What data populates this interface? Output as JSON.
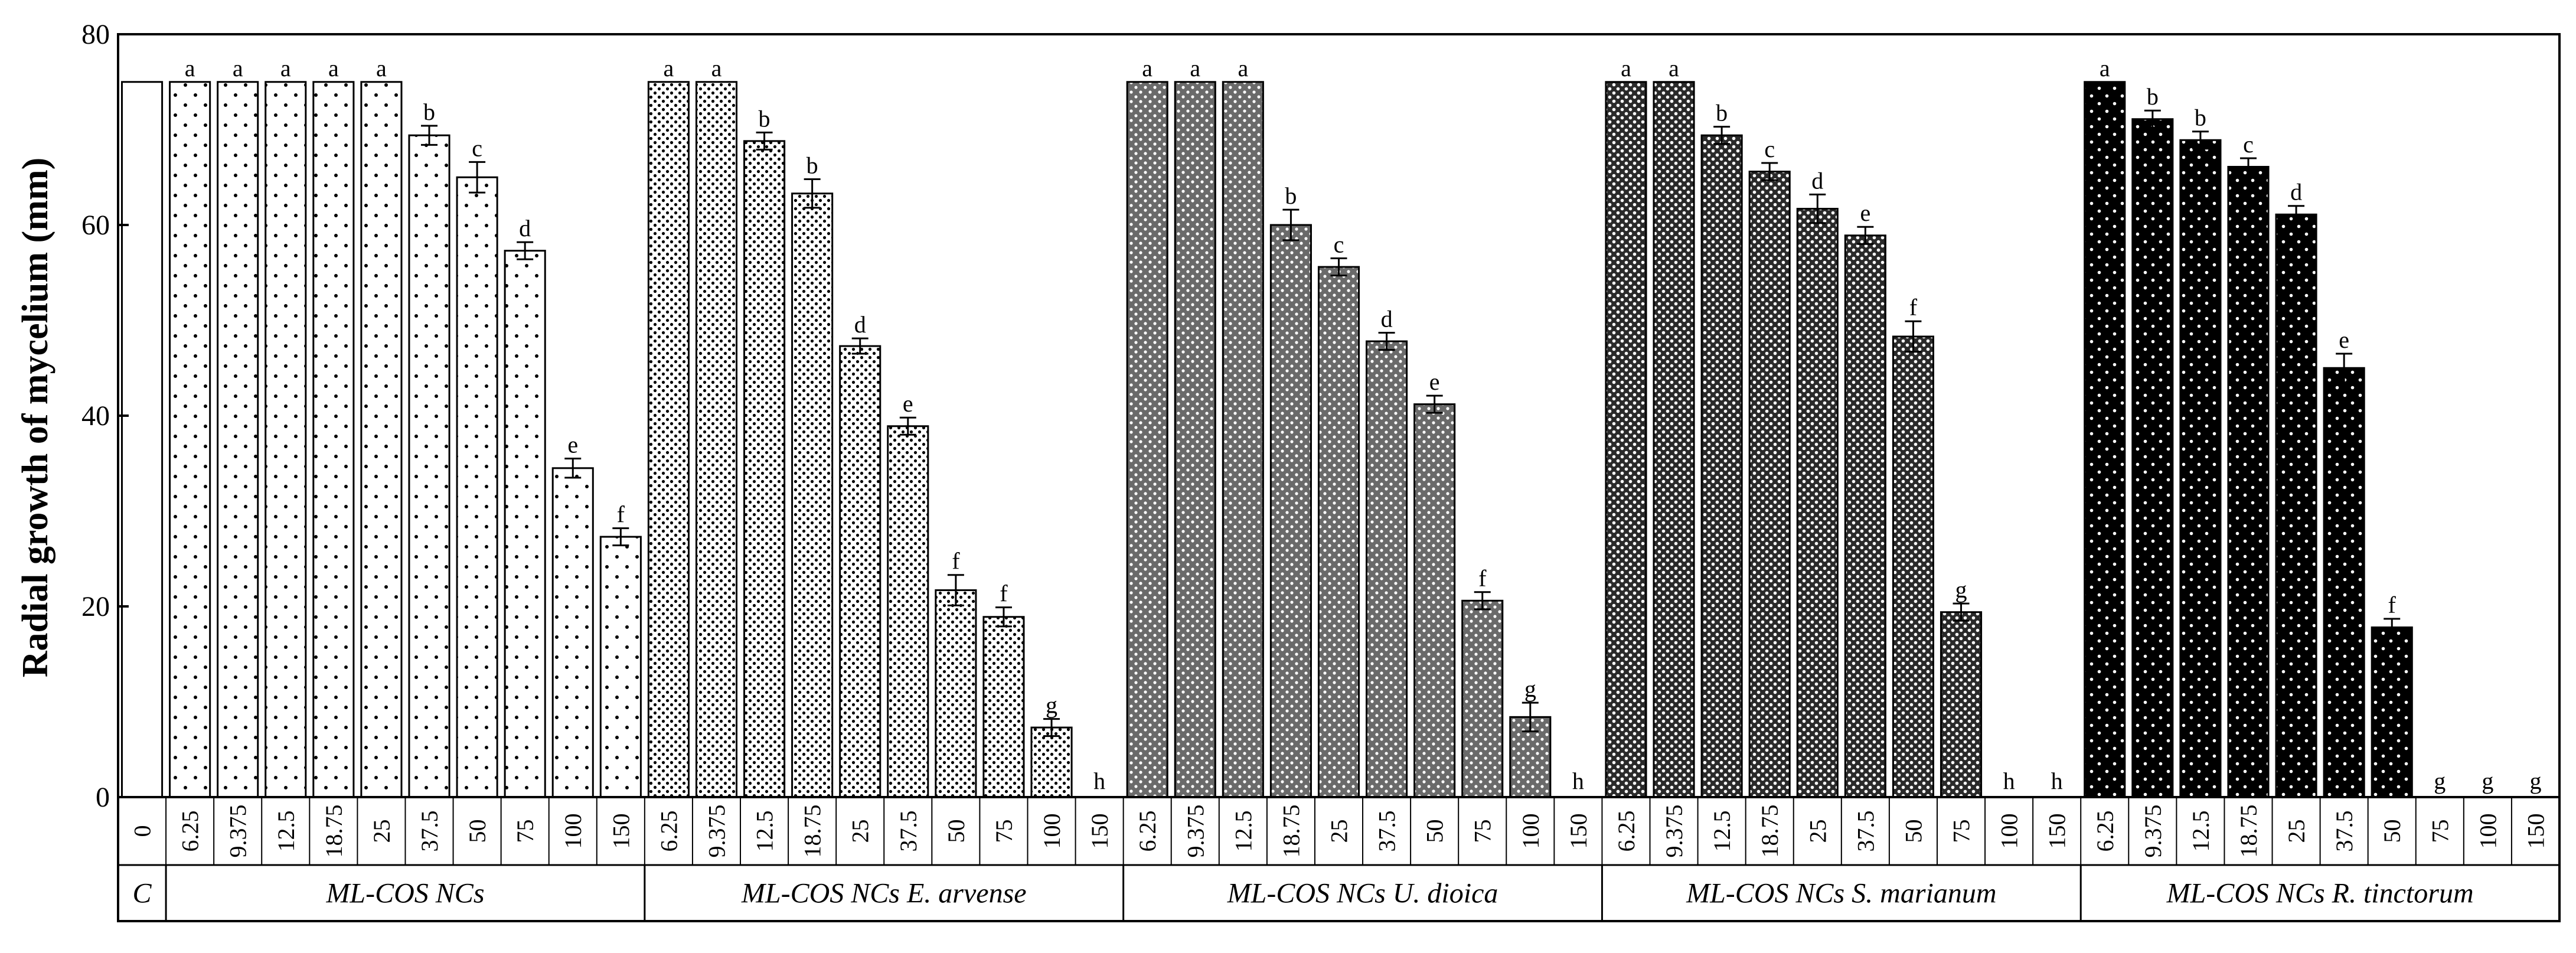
{
  "chart_data": {
    "type": "bar",
    "ylabel": "Radial growth of mycelium (mm)",
    "xlabel": "",
    "title": "",
    "ylim": [
      0,
      80
    ],
    "yticks": [
      0,
      20,
      40,
      60,
      80
    ],
    "grid": false,
    "legend": "none",
    "control": {
      "group_label": "C",
      "concentration": "0",
      "value": 75,
      "error": 0,
      "letter": "",
      "pattern": "plain"
    },
    "groups": [
      {
        "name": "ML-COS NCs",
        "pattern": "sparse-dots",
        "concentrations": [
          "6.25",
          "9.375",
          "12.5",
          "18.75",
          "25",
          "37.5",
          "50",
          "75",
          "100",
          "150"
        ],
        "values": [
          75,
          75,
          75,
          75,
          75,
          69.4,
          65.0,
          57.3,
          34.5,
          27.3
        ],
        "errors": [
          0,
          0,
          0,
          0,
          0,
          1.0,
          1.6,
          0.9,
          1.0,
          0.9
        ],
        "letters": [
          "a",
          "a",
          "a",
          "a",
          "a",
          "b",
          "c",
          "d",
          "e",
          "f"
        ]
      },
      {
        "name": "ML-COS NCs E. arvense",
        "pattern": "dense-dots",
        "concentrations": [
          "6.25",
          "9.375",
          "12.5",
          "18.75",
          "25",
          "37.5",
          "50",
          "75",
          "100",
          "150"
        ],
        "values": [
          75,
          75,
          68.8,
          63.3,
          47.3,
          38.9,
          21.7,
          18.9,
          7.3,
          0
        ],
        "errors": [
          0,
          0,
          0.9,
          1.5,
          0.8,
          0.9,
          1.6,
          1.0,
          0.9,
          0
        ],
        "letters": [
          "a",
          "a",
          "b",
          "b",
          "d",
          "e",
          "f",
          "f",
          "g",
          "h"
        ]
      },
      {
        "name": "ML-COS NCs U. dioica",
        "pattern": "grey-crosshatch",
        "concentrations": [
          "6.25",
          "9.375",
          "12.5",
          "18.75",
          "25",
          "37.5",
          "50",
          "75",
          "100",
          "150"
        ],
        "values": [
          75,
          75,
          75,
          60.0,
          55.6,
          47.8,
          41.2,
          20.6,
          8.4,
          0
        ],
        "errors": [
          0,
          0,
          0,
          1.6,
          0.9,
          0.9,
          0.9,
          0.9,
          1.5,
          0
        ],
        "letters": [
          "a",
          "a",
          "a",
          "b",
          "c",
          "d",
          "e",
          "f",
          "g",
          "h"
        ]
      },
      {
        "name": "ML-COS NCs S. marianum",
        "pattern": "dark-crosshatch",
        "concentrations": [
          "6.25",
          "9.375",
          "12.5",
          "18.75",
          "25",
          "37.5",
          "50",
          "75",
          "100",
          "150"
        ],
        "values": [
          75,
          75,
          69.4,
          65.6,
          61.7,
          58.9,
          48.3,
          19.4,
          0,
          0
        ],
        "errors": [
          0,
          0,
          0.9,
          0.9,
          1.5,
          0.9,
          1.6,
          0.9,
          0,
          0
        ],
        "letters": [
          "a",
          "a",
          "b",
          "c",
          "d",
          "e",
          "f",
          "g",
          "h",
          "h"
        ]
      },
      {
        "name": "ML-COS NCs R. tinctorum",
        "pattern": "black-dots",
        "concentrations": [
          "6.25",
          "9.375",
          "12.5",
          "18.75",
          "25",
          "37.5",
          "50",
          "75",
          "100",
          "150"
        ],
        "values": [
          75,
          71.1,
          68.9,
          66.1,
          61.1,
          45.0,
          17.8,
          0,
          0,
          0
        ],
        "errors": [
          0,
          0.9,
          0.9,
          0.9,
          0.9,
          1.5,
          0.9,
          0,
          0,
          0
        ],
        "letters": [
          "a",
          "b",
          "b",
          "c",
          "d",
          "e",
          "f",
          "g",
          "g",
          "g"
        ]
      }
    ]
  }
}
